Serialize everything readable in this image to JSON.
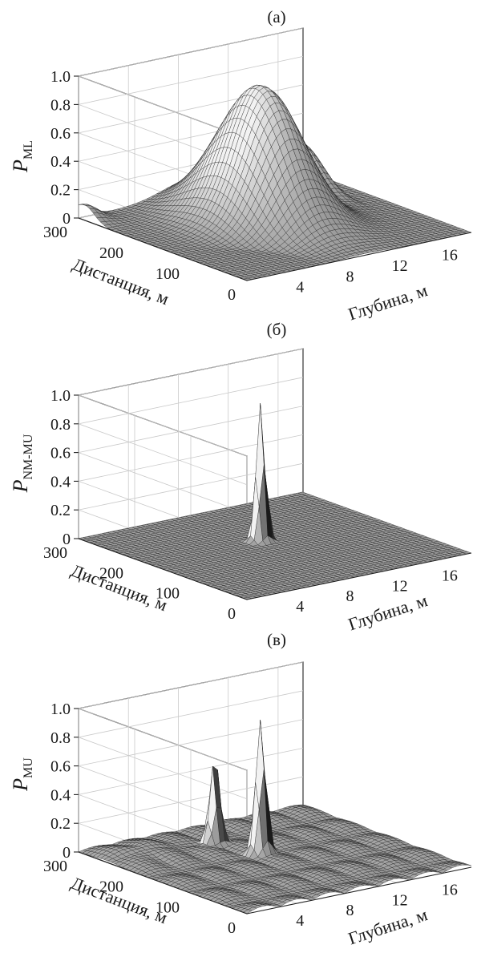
{
  "chart_data": [
    {
      "type": "surface",
      "panel_label": "(а)",
      "zlabel_main": "P",
      "zlabel_sub": "ML",
      "xlabel": "Глубина, м",
      "ylabel": "Дистанция, м",
      "x_ticks": [
        "4",
        "8",
        "12",
        "16"
      ],
      "y_ticks": [
        "0",
        "100",
        "200",
        "300"
      ],
      "z_ticks": [
        "0",
        "0.2",
        "0.4",
        "0.6",
        "0.8",
        "1.0"
      ],
      "xlim": [
        0,
        18
      ],
      "ylim": [
        0,
        300
      ],
      "zlim": [
        0,
        1
      ],
      "grid": true,
      "peaks": [
        {
          "depth": 9,
          "distance": 175,
          "value": 0.95
        }
      ]
    },
    {
      "type": "surface",
      "panel_label": "(б)",
      "zlabel_main": "P",
      "zlabel_sub": "NM-MU",
      "xlabel": "Глубина, м",
      "ylabel": "Дистанция, м",
      "x_ticks": [
        "4",
        "8",
        "12",
        "16"
      ],
      "y_ticks": [
        "0",
        "100",
        "200",
        "300"
      ],
      "z_ticks": [
        "0",
        "0.2",
        "0.4",
        "0.6",
        "0.8",
        "1.0"
      ],
      "xlim": [
        0,
        18
      ],
      "ylim": [
        0,
        300
      ],
      "zlim": [
        0,
        1
      ],
      "grid": true,
      "peaks": [
        {
          "depth": 9,
          "distance": 175,
          "value": 0.98
        }
      ]
    },
    {
      "type": "surface",
      "panel_label": "(в)",
      "zlabel_main": "P",
      "zlabel_sub": "MU",
      "xlabel": "Глубина, м",
      "ylabel": "Дистанция, м",
      "x_ticks": [
        "4",
        "8",
        "12",
        "16"
      ],
      "y_ticks": [
        "0",
        "100",
        "200",
        "300"
      ],
      "z_ticks": [
        "0",
        "0.2",
        "0.4",
        "0.6",
        "0.8",
        "1.0"
      ],
      "xlim": [
        0,
        18
      ],
      "ylim": [
        0,
        300
      ],
      "zlim": [
        0,
        1
      ],
      "grid": true,
      "peaks": [
        {
          "depth": 9,
          "distance": 175,
          "value": 0.95
        },
        {
          "depth": 8,
          "distance": 235,
          "value": 0.62
        }
      ]
    }
  ]
}
